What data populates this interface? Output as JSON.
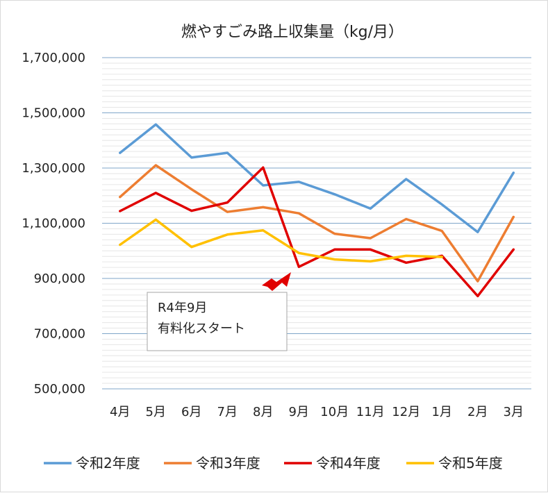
{
  "chart_data": {
    "type": "line",
    "title": "燃やすごみ路上収集量（kg/月）",
    "categories": [
      "4月",
      "5月",
      "6月",
      "7月",
      "8月",
      "9月",
      "10月",
      "11月",
      "12月",
      "1月",
      "2月",
      "3月"
    ],
    "ylim": [
      500000,
      1700000
    ],
    "yticks": [
      500000,
      700000,
      900000,
      1100000,
      1300000,
      1500000,
      1700000
    ],
    "ytick_labels": [
      "500,000",
      "700,000",
      "900,000",
      "1,100,000",
      "1,300,000",
      "1,500,000",
      "1,700,000"
    ],
    "grid": true,
    "legend_position": "bottom",
    "series": [
      {
        "name": "令和2年度",
        "color": "#5b9bd5",
        "values": [
          1355000,
          1458000,
          1338000,
          1355000,
          1237000,
          1250000,
          1205000,
          1153000,
          1260000,
          1168000,
          1068000,
          1283000
        ]
      },
      {
        "name": "令和3年度",
        "color": "#ed7d31",
        "values": [
          1195000,
          1310000,
          1223000,
          1141000,
          1158000,
          1136000,
          1062000,
          1046000,
          1115000,
          1072000,
          890000,
          1123000
        ]
      },
      {
        "name": "令和4年度",
        "color": "#e00000",
        "values": [
          1144000,
          1210000,
          1145000,
          1175000,
          1302000,
          942000,
          1005000,
          1005000,
          957000,
          982000,
          836000,
          1005000
        ]
      },
      {
        "name": "令和5年度",
        "color": "#ffc000",
        "values": [
          1022000,
          1113000,
          1014000,
          1059000,
          1074000,
          992000,
          969000,
          962000,
          982000,
          978000,
          null,
          null
        ]
      }
    ],
    "annotation": {
      "lines": [
        "R4年9月",
        "有料化スタート"
      ],
      "arrow_color": "#e00000"
    }
  }
}
